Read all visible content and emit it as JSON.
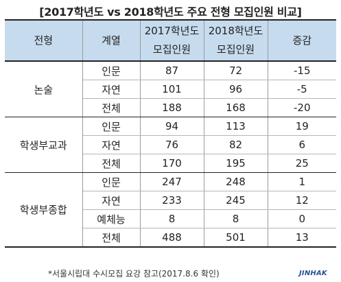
{
  "title": "[2017학년도 vs 2018학년도 주요 전형 모집인원 비교]",
  "table": {
    "headers": {
      "type": "전형",
      "field": "계열",
      "y2017_line1": "2017학년도",
      "y2017_line2": "모집인원",
      "y2018_line1": "2018학년도",
      "y2018_line2": "모집인원",
      "change": "증감"
    },
    "groups": [
      {
        "name": "논술",
        "rows": [
          {
            "field": "인문",
            "y2017": "87",
            "y2018": "72",
            "change": "-15"
          },
          {
            "field": "자연",
            "y2017": "101",
            "y2018": "96",
            "change": "-5"
          },
          {
            "field": "전체",
            "y2017": "188",
            "y2018": "168",
            "change": "-20"
          }
        ]
      },
      {
        "name": "학생부교과",
        "rows": [
          {
            "field": "인문",
            "y2017": "94",
            "y2018": "113",
            "change": "19"
          },
          {
            "field": "자연",
            "y2017": "76",
            "y2018": "82",
            "change": "6"
          },
          {
            "field": "전체",
            "y2017": "170",
            "y2018": "195",
            "change": "25"
          }
        ]
      },
      {
        "name": "학생부종합",
        "rows": [
          {
            "field": "인문",
            "y2017": "247",
            "y2018": "248",
            "change": "1"
          },
          {
            "field": "자연",
            "y2017": "233",
            "y2018": "245",
            "change": "12"
          },
          {
            "field": "예체능",
            "y2017": "8",
            "y2018": "8",
            "change": "0"
          },
          {
            "field": "전체",
            "y2017": "488",
            "y2018": "501",
            "change": "13"
          }
        ]
      }
    ]
  },
  "footnote": "*서울시립대 수시모집 요강 참고(2017.8.6 확인)",
  "logo": "JINHAK"
}
